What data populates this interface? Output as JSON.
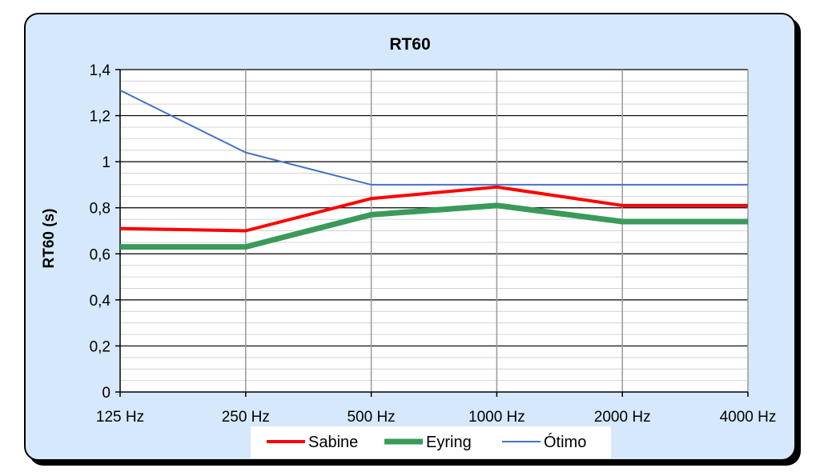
{
  "chart_data": {
    "type": "line",
    "title": "RT60",
    "xlabel": "",
    "ylabel": "RT60 (s)",
    "categories": [
      "125 Hz",
      "250 Hz",
      "500 Hz",
      "1000 Hz",
      "2000 Hz",
      "4000 Hz"
    ],
    "ylim": [
      0,
      1.4
    ],
    "yticks": [
      "0",
      "0,2",
      "0,4",
      "0,6",
      "0,8",
      "1",
      "1,2",
      "1,4"
    ],
    "grid": true,
    "legend": "bottom",
    "series": [
      {
        "name": "Sabine",
        "values": [
          0.71,
          0.7,
          0.84,
          0.89,
          0.81,
          0.81
        ],
        "color": "#ff0000"
      },
      {
        "name": "Eyring",
        "values": [
          0.63,
          0.63,
          0.77,
          0.81,
          0.74,
          0.74
        ],
        "color": "#3a9a5c"
      },
      {
        "name": "Ótimo",
        "values": [
          1.31,
          1.04,
          0.9,
          0.9,
          0.9,
          0.9
        ],
        "color": "#4472c4"
      }
    ]
  }
}
